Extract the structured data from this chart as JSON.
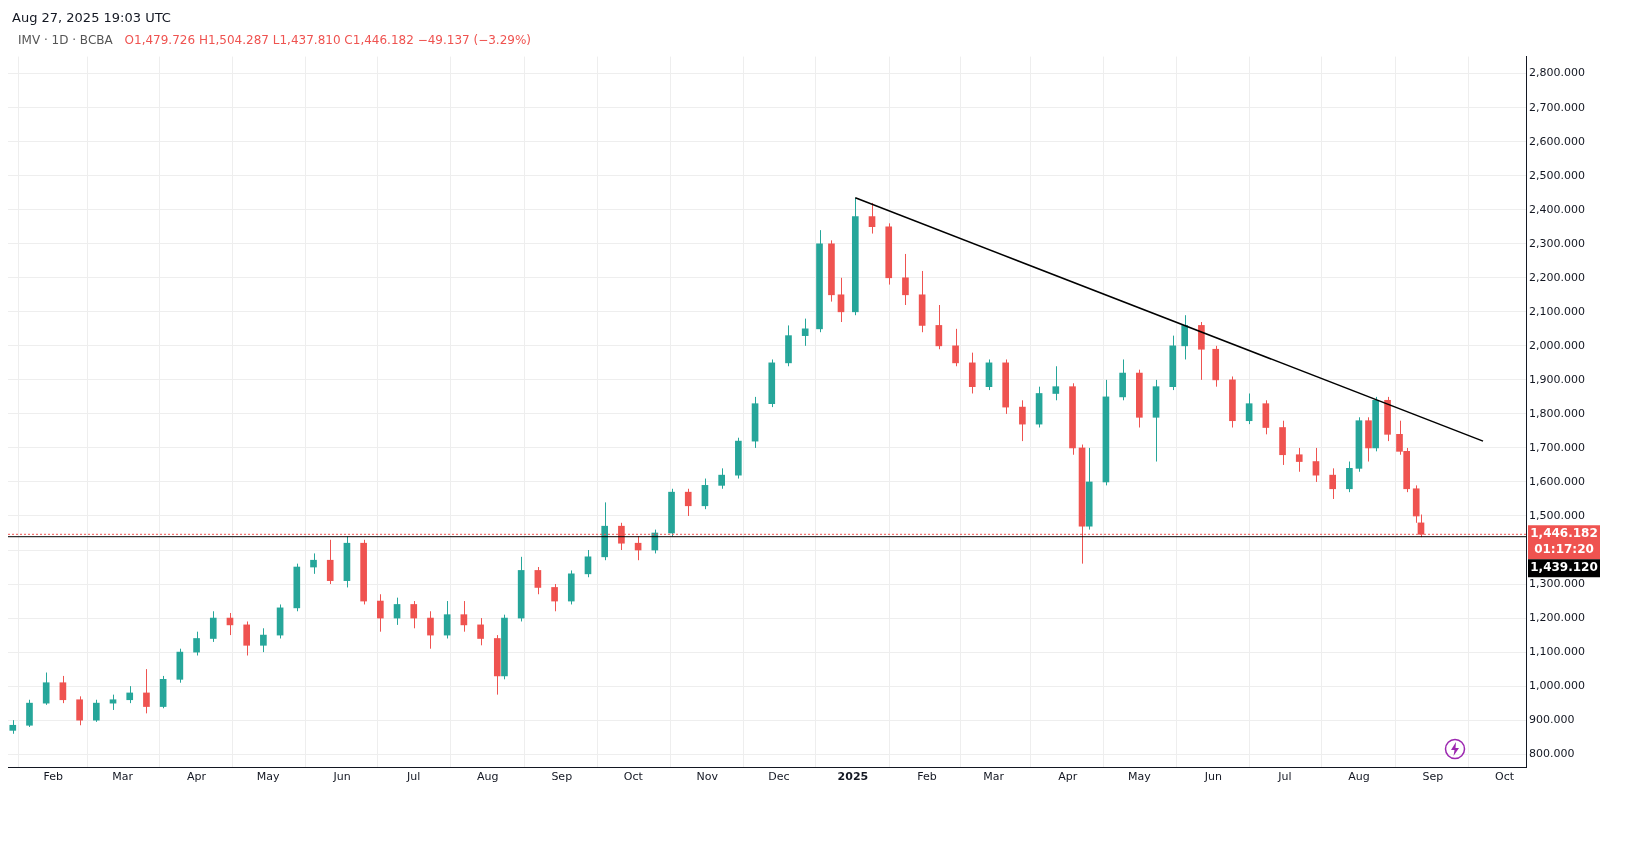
{
  "chart_data": {
    "type": "candlestick",
    "title": "IMV · 1D · BCBA",
    "annotations": [
      "Aug 27, 2025 19:03 UTC",
      "O1,479.726 H1,504.287 L1,437.810 C1,446.182 −49.137 (−3.29%)",
      "01:17:20"
    ],
    "x": [
      "2024-01-15",
      "2024-01-22",
      "2024-01-29",
      "2024-02-05",
      "2024-02-12",
      "2024-02-19",
      "2024-02-26",
      "2024-03-04",
      "2024-03-11",
      "2024-03-18",
      "2024-03-25",
      "2024-04-01",
      "2024-04-08",
      "2024-04-15",
      "2024-04-22",
      "2024-04-29",
      "2024-05-06",
      "2024-05-13",
      "2024-05-20",
      "2024-05-27",
      "2024-06-03",
      "2024-06-10",
      "2024-06-17",
      "2024-06-24",
      "2024-07-01",
      "2024-07-08",
      "2024-07-15",
      "2024-07-22",
      "2024-07-29",
      "2024-08-05",
      "2024-08-08",
      "2024-08-15",
      "2024-08-22",
      "2024-08-29",
      "2024-09-05",
      "2024-09-12",
      "2024-09-19",
      "2024-09-26",
      "2024-10-03",
      "2024-10-10",
      "2024-10-17",
      "2024-10-24",
      "2024-10-31",
      "2024-11-07",
      "2024-11-14",
      "2024-11-21",
      "2024-11-28",
      "2024-12-05",
      "2024-12-12",
      "2024-12-18",
      "2024-12-23",
      "2024-12-27",
      "2025-01-02",
      "2025-01-09",
      "2025-01-16",
      "2025-01-23",
      "2025-01-30",
      "2025-02-06",
      "2025-02-13",
      "2025-02-20",
      "2025-02-27",
      "2025-03-06",
      "2025-03-13",
      "2025-03-20",
      "2025-03-27",
      "2025-04-03",
      "2025-04-07",
      "2025-04-10",
      "2025-04-17",
      "2025-04-24",
      "2025-05-01",
      "2025-05-08",
      "2025-05-15",
      "2025-05-20",
      "2025-05-27",
      "2025-06-02",
      "2025-06-09",
      "2025-06-16",
      "2025-06-23",
      "2025-06-30",
      "2025-07-07",
      "2025-07-14",
      "2025-07-21",
      "2025-07-28",
      "2025-08-01",
      "2025-08-05",
      "2025-08-08",
      "2025-08-13",
      "2025-08-18",
      "2025-08-21",
      "2025-08-25",
      "2025-08-27"
    ],
    "ohlc": [
      [
        870,
        900,
        860,
        885
      ],
      [
        885,
        960,
        880,
        950
      ],
      [
        950,
        1040,
        945,
        1010
      ],
      [
        1010,
        1030,
        950,
        960
      ],
      [
        960,
        970,
        885,
        900
      ],
      [
        900,
        960,
        895,
        950
      ],
      [
        950,
        975,
        930,
        960
      ],
      [
        960,
        1000,
        950,
        980
      ],
      [
        980,
        1050,
        920,
        940
      ],
      [
        940,
        1030,
        935,
        1020
      ],
      [
        1020,
        1110,
        1010,
        1100
      ],
      [
        1100,
        1160,
        1090,
        1140
      ],
      [
        1140,
        1220,
        1130,
        1200
      ],
      [
        1200,
        1215,
        1150,
        1180
      ],
      [
        1180,
        1190,
        1090,
        1120
      ],
      [
        1120,
        1170,
        1100,
        1150
      ],
      [
        1150,
        1240,
        1140,
        1230
      ],
      [
        1230,
        1360,
        1220,
        1350
      ],
      [
        1350,
        1390,
        1330,
        1370
      ],
      [
        1370,
        1430,
        1300,
        1310
      ],
      [
        1310,
        1440,
        1290,
        1420
      ],
      [
        1420,
        1430,
        1240,
        1250
      ],
      [
        1250,
        1270,
        1160,
        1200
      ],
      [
        1200,
        1260,
        1180,
        1240
      ],
      [
        1240,
        1250,
        1170,
        1200
      ],
      [
        1200,
        1220,
        1110,
        1150
      ],
      [
        1150,
        1250,
        1140,
        1210
      ],
      [
        1210,
        1250,
        1160,
        1180
      ],
      [
        1180,
        1200,
        1120,
        1140
      ],
      [
        1140,
        1150,
        975,
        1030
      ],
      [
        1030,
        1210,
        1020,
        1200
      ],
      [
        1200,
        1380,
        1190,
        1340
      ],
      [
        1340,
        1350,
        1270,
        1290
      ],
      [
        1290,
        1300,
        1220,
        1250
      ],
      [
        1250,
        1340,
        1240,
        1330
      ],
      [
        1330,
        1400,
        1320,
        1380
      ],
      [
        1380,
        1540,
        1370,
        1470
      ],
      [
        1470,
        1480,
        1400,
        1420
      ],
      [
        1420,
        1440,
        1370,
        1400
      ],
      [
        1400,
        1460,
        1390,
        1450
      ],
      [
        1450,
        1580,
        1440,
        1570
      ],
      [
        1570,
        1580,
        1500,
        1530
      ],
      [
        1530,
        1610,
        1520,
        1590
      ],
      [
        1590,
        1640,
        1580,
        1620
      ],
      [
        1620,
        1730,
        1610,
        1720
      ],
      [
        1720,
        1850,
        1700,
        1830
      ],
      [
        1830,
        1960,
        1820,
        1950
      ],
      [
        1950,
        2060,
        1940,
        2030
      ],
      [
        2030,
        2080,
        2000,
        2050
      ],
      [
        2050,
        2340,
        2040,
        2300
      ],
      [
        2300,
        2310,
        2130,
        2150
      ],
      [
        2150,
        2200,
        2070,
        2100
      ],
      [
        2100,
        2435,
        2090,
        2380
      ],
      [
        2380,
        2420,
        2330,
        2350
      ],
      [
        2350,
        2360,
        2180,
        2200
      ],
      [
        2200,
        2270,
        2120,
        2150
      ],
      [
        2150,
        2220,
        2040,
        2060
      ],
      [
        2060,
        2120,
        1990,
        2000
      ],
      [
        2000,
        2050,
        1940,
        1950
      ],
      [
        1950,
        1980,
        1860,
        1880
      ],
      [
        1880,
        1960,
        1870,
        1950
      ],
      [
        1950,
        1960,
        1800,
        1820
      ],
      [
        1820,
        1840,
        1720,
        1770
      ],
      [
        1770,
        1880,
        1760,
        1860
      ],
      [
        1860,
        1940,
        1840,
        1880
      ],
      [
        1880,
        1890,
        1680,
        1700
      ],
      [
        1700,
        1710,
        1360,
        1470
      ],
      [
        1470,
        1700,
        1460,
        1600
      ],
      [
        1600,
        1900,
        1590,
        1850
      ],
      [
        1850,
        1960,
        1840,
        1920
      ],
      [
        1920,
        1930,
        1760,
        1790
      ],
      [
        1790,
        1900,
        1660,
        1880
      ],
      [
        1880,
        2030,
        1870,
        2000
      ],
      [
        2000,
        2090,
        1960,
        2060
      ],
      [
        2060,
        2070,
        1900,
        1990
      ],
      [
        1990,
        2000,
        1880,
        1900
      ],
      [
        1900,
        1910,
        1760,
        1780
      ],
      [
        1780,
        1860,
        1770,
        1830
      ],
      [
        1830,
        1840,
        1740,
        1760
      ],
      [
        1760,
        1780,
        1650,
        1680
      ],
      [
        1680,
        1700,
        1630,
        1660
      ],
      [
        1660,
        1700,
        1600,
        1620
      ],
      [
        1620,
        1640,
        1550,
        1580
      ],
      [
        1580,
        1660,
        1570,
        1640
      ],
      [
        1640,
        1790,
        1630,
        1780
      ],
      [
        1780,
        1790,
        1660,
        1700
      ],
      [
        1700,
        1850,
        1690,
        1840
      ],
      [
        1840,
        1850,
        1720,
        1740
      ],
      [
        1740,
        1780,
        1680,
        1690
      ],
      [
        1690,
        1700,
        1570,
        1580
      ],
      [
        1580,
        1590,
        1480,
        1500
      ],
      [
        1479.726,
        1504.287,
        1437.81,
        1446.182
      ]
    ],
    "series": [
      {
        "type": "line",
        "color": "#000000",
        "x": [
          "2025-01-02",
          "2025-09-22"
        ],
        "values": [
          2435,
          1720
        ]
      }
    ],
    "ref_lines": [
      {
        "axis": "y",
        "value": 1439.12,
        "label": "1,439.120",
        "color": "#000000",
        "line_style": "solid"
      },
      {
        "axis": "y",
        "value": 1446.182,
        "label": "1,446.182",
        "color": "#ef5350",
        "line_style": "dotted"
      }
    ],
    "xlim": [
      "2024-01-13",
      "2025-10-10"
    ],
    "xticks": [
      {
        "value": "2024-02-01",
        "label": "Feb"
      },
      {
        "value": "2024-03-01",
        "label": "Mar"
      },
      {
        "value": "2024-04-01",
        "label": "Apr"
      },
      {
        "value": "2024-05-01",
        "label": "May"
      },
      {
        "value": "2024-06-01",
        "label": "Jun"
      },
      {
        "value": "2024-07-01",
        "label": "Jul"
      },
      {
        "value": "2024-08-01",
        "label": "Aug"
      },
      {
        "value": "2024-09-01",
        "label": "Sep"
      },
      {
        "value": "2024-10-01",
        "label": "Oct"
      },
      {
        "value": "2024-11-01",
        "label": "Nov"
      },
      {
        "value": "2024-12-01",
        "label": "Dec"
      },
      {
        "value": "2025-01-01",
        "label": "2025"
      },
      {
        "value": "2025-02-01",
        "label": "Feb"
      },
      {
        "value": "2025-03-01",
        "label": "Mar"
      },
      {
        "value": "2025-04-01",
        "label": "Apr"
      },
      {
        "value": "2025-05-01",
        "label": "May"
      },
      {
        "value": "2025-06-01",
        "label": "Jun"
      },
      {
        "value": "2025-07-01",
        "label": "Jul"
      },
      {
        "value": "2025-08-01",
        "label": "Aug"
      },
      {
        "value": "2025-09-01",
        "label": "Sep"
      },
      {
        "value": "2025-10-01",
        "label": "Oct"
      }
    ],
    "ylim": [
      760,
      2850
    ],
    "yticks": [
      {
        "value": 800,
        "label": "800.000"
      },
      {
        "value": 900,
        "label": "900.000"
      },
      {
        "value": 1000,
        "label": "1,000.000"
      },
      {
        "value": 1100,
        "label": "1,100.000"
      },
      {
        "value": 1200,
        "label": "1,200.000"
      },
      {
        "value": 1300,
        "label": "1,300.000"
      },
      {
        "value": 1400,
        "label": null
      },
      {
        "value": 1500,
        "label": "1,500.000"
      },
      {
        "value": 1600,
        "label": "1,600.000"
      },
      {
        "value": 1700,
        "label": "1,700.000"
      },
      {
        "value": 1800,
        "label": "1,800.000"
      },
      {
        "value": 1900,
        "label": "1,900.000"
      },
      {
        "value": 2000,
        "label": "2,000.000"
      },
      {
        "value": 2100,
        "label": "2,100.000"
      },
      {
        "value": 2200,
        "label": "2,200.000"
      },
      {
        "value": 2300,
        "label": "2,300.000"
      },
      {
        "value": 2400,
        "label": "2,400.000"
      },
      {
        "value": 2500,
        "label": "2,500.000"
      },
      {
        "value": 2600,
        "label": "2,600.000"
      },
      {
        "value": 2700,
        "label": "2,700.000"
      },
      {
        "value": 2800,
        "label": "2,800.000"
      }
    ],
    "grid": true,
    "legend": false
  }
}
